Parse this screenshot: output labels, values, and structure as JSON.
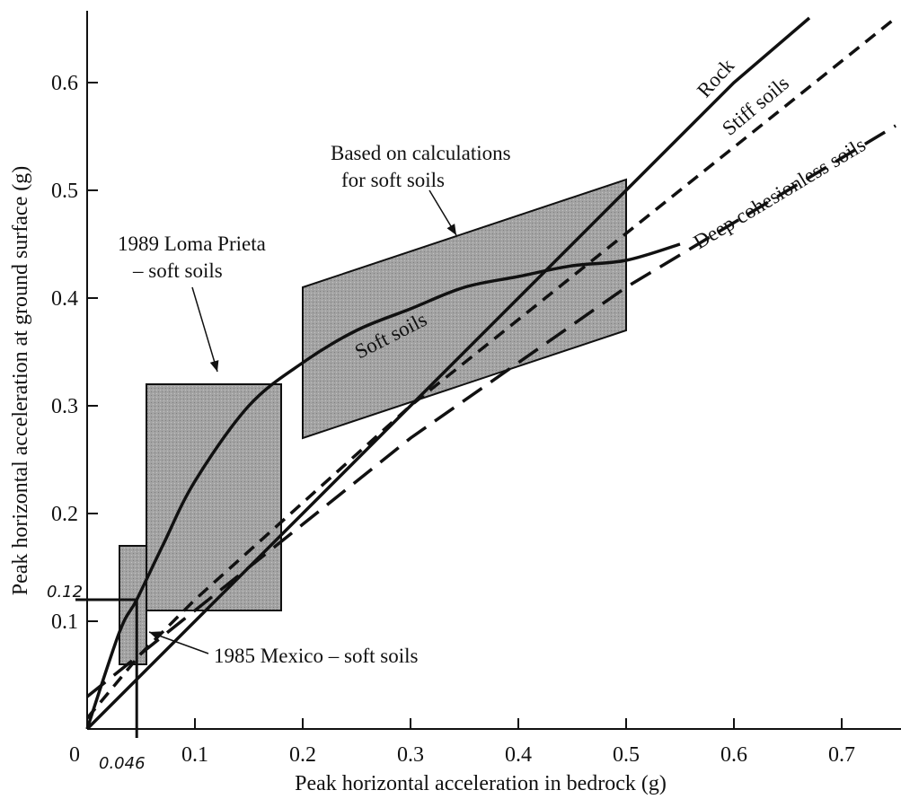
{
  "chart_data": {
    "type": "line",
    "xlabel": "Peak horizontal acceleration in bedrock (g)",
    "ylabel": "Peak horizontal acceleration at ground surface (g)",
    "xlim": [
      0,
      0.75
    ],
    "ylim": [
      0,
      0.65
    ],
    "x_ticks": [
      "0",
      "0.1",
      "0.2",
      "0.3",
      "0.4",
      "0.5",
      "0.6",
      "0.7"
    ],
    "y_ticks": [
      "0.1",
      "0.2",
      "0.3",
      "0.4",
      "0.5",
      "0.6"
    ],
    "x_tick_values": [
      0,
      0.1,
      0.2,
      0.3,
      0.4,
      0.5,
      0.6,
      0.7
    ],
    "y_tick_values": [
      0.1,
      0.2,
      0.3,
      0.4,
      0.5,
      0.6
    ],
    "grid": false,
    "series": [
      {
        "name": "Rock",
        "style": "solid",
        "x": [
          0,
          0.1,
          0.2,
          0.3,
          0.4,
          0.5,
          0.6,
          0.67
        ],
        "y": [
          0,
          0.1,
          0.2,
          0.3,
          0.4,
          0.5,
          0.6,
          0.66
        ]
      },
      {
        "name": "Stiff soils",
        "style": "short-dash",
        "x": [
          0,
          0.05,
          0.1,
          0.2,
          0.3,
          0.4,
          0.5,
          0.6,
          0.75
        ],
        "y": [
          0.01,
          0.07,
          0.12,
          0.21,
          0.3,
          0.38,
          0.46,
          0.54,
          0.66
        ]
      },
      {
        "name": "Deep cohesionless soils",
        "style": "long-dash",
        "x": [
          0,
          0.05,
          0.1,
          0.2,
          0.3,
          0.4,
          0.5,
          0.6,
          0.75
        ],
        "y": [
          0.03,
          0.07,
          0.11,
          0.19,
          0.27,
          0.34,
          0.41,
          0.47,
          0.56
        ]
      },
      {
        "name": "Soft soils",
        "style": "solid",
        "x": [
          0,
          0.03,
          0.046,
          0.07,
          0.1,
          0.15,
          0.2,
          0.25,
          0.3,
          0.35,
          0.4,
          0.45,
          0.5,
          0.55
        ],
        "y": [
          0,
          0.09,
          0.12,
          0.17,
          0.23,
          0.3,
          0.34,
          0.37,
          0.39,
          0.41,
          0.42,
          0.43,
          0.435,
          0.45
        ]
      }
    ],
    "regions": [
      {
        "label": "1985 Mexico – soft soils",
        "x": [
          0.03,
          0.055
        ],
        "y": [
          0.06,
          0.17
        ]
      },
      {
        "label": "1989 Loma Prieta – soft soils",
        "x": [
          0.055,
          0.18
        ],
        "y": [
          0.11,
          0.32
        ]
      },
      {
        "label": "Based on calculations for soft soils",
        "polygon": [
          [
            0.2,
            0.27
          ],
          [
            0.2,
            0.41
          ],
          [
            0.5,
            0.51
          ],
          [
            0.5,
            0.37
          ]
        ]
      }
    ],
    "annotations": {
      "rock": "Rock",
      "stiff": "Stiff soils",
      "deep": "Deep cohesionless soils",
      "soft": "Soft soils",
      "calc_line1": "Based on calculations",
      "calc_line2": "for soft soils",
      "loma_line1": "1989 Loma Prieta",
      "loma_line2": "– soft soils",
      "mexico": "1985 Mexico – soft soils",
      "hand_y": "0.12",
      "hand_x": "0.046"
    },
    "highlight_point": {
      "x": 0.046,
      "y": 0.12
    },
    "colors": {
      "region_fill": "#9a9a9a",
      "line": "#111111"
    }
  }
}
